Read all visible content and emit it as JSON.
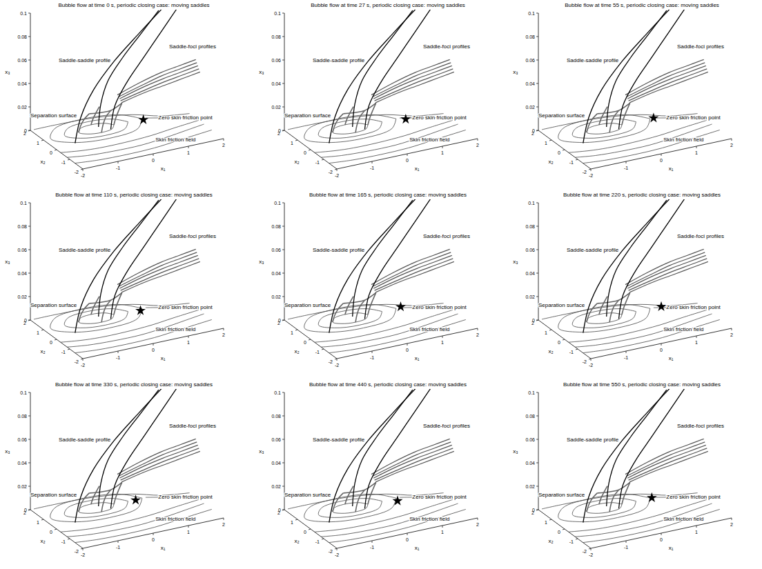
{
  "chart_data": {
    "type": "line3d",
    "x_label": "x₁",
    "y_label": "x₂",
    "z_label": "x₃",
    "xlim": [
      -2,
      2
    ],
    "ylim": [
      -2,
      2
    ],
    "zlim": [
      0,
      0.1
    ],
    "xticks": [
      -2,
      -1,
      0,
      1,
      2
    ],
    "yticks": [
      -2,
      -1,
      0,
      1,
      2
    ],
    "zticks": [
      0,
      0.02,
      0.04,
      0.06,
      0.08,
      0.1
    ],
    "panels": [
      {
        "title": "Bubble flow at time 0 s, periodic closing case: moving saddles",
        "zero_skin_friction_point": {
          "x1": 0.8,
          "x2": 0.9
        }
      },
      {
        "title": "Bubble flow at time 27 s, periodic closing case: moving saddles",
        "zero_skin_friction_point": {
          "x1": 1.0,
          "x2": 0.8
        }
      },
      {
        "title": "Bubble flow at time 55 s, periodic closing case: moving saddles",
        "zero_skin_friction_point": {
          "x1": 0.9,
          "x2": 1.0
        }
      },
      {
        "title": "Bubble flow at time 110 s, periodic closing case: moving saddles",
        "zero_skin_friction_point": {
          "x1": 0.7,
          "x2": 0.85
        }
      },
      {
        "title": "Bubble flow at time 165 s, periodic closing case: moving saddles",
        "zero_skin_friction_point": {
          "x1": 0.95,
          "x2": 1.05
        }
      },
      {
        "title": "Bubble flow at time 220 s, periodic closing case: moving saddles",
        "zero_skin_friction_point": {
          "x1": 1.1,
          "x2": 0.95
        }
      },
      {
        "title": "Bubble flow at time 330 s, periodic closing case: moving saddles",
        "zero_skin_friction_point": {
          "x1": 0.6,
          "x2": 0.95
        }
      },
      {
        "title": "Bubble flow at time 440 s, periodic closing case: moving saddles",
        "zero_skin_friction_point": {
          "x1": 0.75,
          "x2": 0.75
        }
      },
      {
        "title": "Bubble flow at time 550 s, periodic closing case: moving saddles",
        "zero_skin_friction_point": {
          "x1": 0.85,
          "x2": 1.0
        }
      }
    ],
    "skin_friction_field": [
      {
        "x1": [
          0,
          -0.15,
          -0.5,
          -0.85,
          -1.0,
          -0.85,
          -0.5,
          -0.15,
          0
        ],
        "x2": [
          1.0,
          1.28,
          1.4,
          1.28,
          1.0,
          0.72,
          0.6,
          0.72,
          1.0
        ]
      },
      {
        "x1": [
          0.4,
          0.14,
          -0.5,
          -1.14,
          -1.4,
          -1.14,
          -0.5,
          0.14,
          0.4
        ],
        "x2": [
          1.0,
          1.49,
          1.7,
          1.49,
          1.0,
          0.51,
          0.3,
          0.51,
          1.0
        ]
      },
      {
        "x1": [
          0.8,
          0.42,
          -0.5,
          -1.42,
          -1.8,
          -1.42,
          -0.5,
          0.42,
          0.8
        ],
        "x2": [
          1.0,
          1.71,
          2.0,
          1.71,
          1.0,
          0.29,
          0.0,
          0.29,
          1.0
        ]
      },
      {
        "x1": [
          -2,
          -1.5,
          -1,
          -0.3,
          0.5,
          1.2,
          2
        ],
        "x2": [
          -0.3,
          -0.5,
          -0.6,
          -0.6,
          -0.5,
          -0.3,
          -0.1
        ]
      },
      {
        "x1": [
          -2,
          -1.5,
          -0.8,
          0,
          0.8,
          1.4,
          2
        ],
        "x2": [
          -0.8,
          -1.0,
          -1.1,
          -1.1,
          -0.9,
          -0.7,
          -0.5
        ]
      },
      {
        "x1": [
          -2,
          -1.4,
          -0.6,
          0.2,
          1,
          2
        ],
        "x2": [
          -1.4,
          -1.55,
          -1.6,
          -1.55,
          -1.35,
          -1.1
        ]
      },
      {
        "x1": [
          0.9,
          1.3,
          1.7,
          2
        ],
        "x2": [
          1.0,
          0.7,
          0.4,
          0.25
        ]
      },
      {
        "x1": [
          -1.9,
          -1.2,
          -0.2,
          0.7,
          1.3,
          2
        ],
        "x2": [
          2.0,
          2.0,
          1.9,
          1.5,
          0.9,
          0.6
        ]
      }
    ],
    "separation_surface": [
      {
        "x1": [
          -1.0,
          -0.95,
          -0.85,
          -0.7
        ],
        "x2": [
          1.0,
          1.0,
          1.0,
          1.0
        ],
        "x3": [
          0,
          0.005,
          0.01,
          0.014
        ]
      },
      {
        "x1": [
          -0.5,
          -0.45,
          -0.35,
          -0.2
        ],
        "x2": [
          0.6,
          0.62,
          0.66,
          0.7
        ],
        "x3": [
          0,
          0.006,
          0.012,
          0.016
        ]
      },
      {
        "x1": [
          0,
          0.05,
          0.12,
          0.2
        ],
        "x2": [
          1.0,
          0.98,
          0.95,
          0.92
        ],
        "x3": [
          0,
          0.006,
          0.012,
          0.018
        ]
      },
      {
        "x1": [
          -0.5,
          -0.45,
          -0.38,
          -0.3
        ],
        "x2": [
          1.4,
          1.38,
          1.34,
          1.3
        ],
        "x3": [
          0,
          0.005,
          0.01,
          0.015
        ]
      },
      {
        "x1": [
          -0.7,
          -0.45,
          -0.2,
          0.2
        ],
        "x2": [
          1.0,
          0.7,
          0.7,
          0.92
        ],
        "x3": [
          0.014,
          0.016,
          0.016,
          0.018
        ]
      }
    ],
    "streamline_band": [
      {
        "x1": [
          0.2,
          0.7,
          1.2,
          1.6,
          2.0
        ],
        "x2": [
          0.95,
          0.6,
          0.3,
          0.05,
          -0.2
        ],
        "x3": [
          0.018,
          0.026,
          0.032,
          0.037,
          0.042
        ]
      },
      {
        "x1": [
          0.2,
          0.7,
          1.2,
          1.6,
          2.0
        ],
        "x2": [
          1.03,
          0.68,
          0.38,
          0.13,
          -0.12
        ],
        "x3": [
          0.019,
          0.027,
          0.034,
          0.039,
          0.044
        ]
      },
      {
        "x1": [
          0.2,
          0.7,
          1.2,
          1.6,
          2.0
        ],
        "x2": [
          1.11,
          0.76,
          0.46,
          0.21,
          -0.04
        ],
        "x3": [
          0.02,
          0.029,
          0.036,
          0.041,
          0.046
        ]
      },
      {
        "x1": [
          0.2,
          0.7,
          1.2,
          1.6,
          2.0
        ],
        "x2": [
          1.19,
          0.84,
          0.54,
          0.29,
          0.04
        ],
        "x3": [
          0.021,
          0.03,
          0.038,
          0.043,
          0.048
        ]
      },
      {
        "x1": [
          0.2,
          0.7,
          1.2,
          1.6,
          2.0
        ],
        "x2": [
          1.27,
          0.92,
          0.62,
          0.37,
          0.12
        ],
        "x3": [
          0.022,
          0.032,
          0.04,
          0.045,
          0.05
        ]
      }
    ],
    "profiles": [
      {
        "x1": [
          -0.4,
          -0.35,
          -0.2,
          0.1,
          0.5,
          0.9
        ],
        "x2": [
          1.1,
          1.05,
          0.9,
          0.6,
          0.3,
          0.0
        ],
        "x3": [
          0,
          0.02,
          0.04,
          0.06,
          0.08,
          0.1
        ]
      },
      {
        "x1": [
          -0.2,
          -0.1,
          0.2,
          0.6,
          1.0,
          1.4
        ],
        "x2": [
          0.7,
          0.65,
          0.5,
          0.3,
          0.1,
          -0.1
        ],
        "x3": [
          0,
          0.02,
          0.04,
          0.06,
          0.08,
          0.1
        ]
      },
      {
        "x1": [
          -1.4,
          -1.2,
          -0.8,
          -0.2,
          0.5,
          1.2
        ],
        "x2": [
          0.2,
          0.3,
          0.4,
          0.45,
          0.4,
          0.3
        ],
        "x3": [
          0,
          0.02,
          0.04,
          0.06,
          0.08,
          0.1
        ]
      }
    ],
    "annotations": [
      {
        "text": "Saddle-saddle profile",
        "x1": -2,
        "x2": -0.16,
        "x3": 0.076
      },
      {
        "text": "Saddle-foci profiles",
        "x1": 0.45,
        "x2": -2,
        "x3": 0.087
      },
      {
        "text": "Separation surface",
        "x1": -2,
        "x2": 2,
        "x3": 0.011
      },
      {
        "text": "Zero skin friction point",
        "x1": 1.15,
        "x2": 0.7,
        "x3": 0
      },
      {
        "text": "Skin friction field",
        "x1": 0.42,
        "x2": -1.04,
        "x3": 0
      }
    ]
  }
}
